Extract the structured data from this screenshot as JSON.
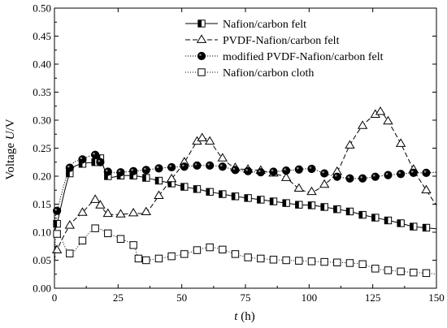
{
  "chart_data": {
    "type": "line",
    "xlabel": "t (h)",
    "xlabel_italic": "t",
    "xlabel_unit": " (h)",
    "ylabel": "Voltage U/V",
    "ylabel_prefix": "Voltage ",
    "ylabel_italic": "U",
    "ylabel_suffix": "/V",
    "xlim": [
      0,
      150
    ],
    "ylim": [
      0,
      0.5
    ],
    "xticks": [
      0,
      25,
      50,
      75,
      100,
      125,
      150
    ],
    "yticks": [
      0.0,
      0.05,
      0.1,
      0.15,
      0.2,
      0.25,
      0.3,
      0.35,
      0.4,
      0.45,
      0.5
    ],
    "xtick_labels": [
      "0",
      "25",
      "50",
      "75",
      "100",
      "125",
      "150"
    ],
    "ytick_labels": [
      "0.00",
      "0.05",
      "0.10",
      "0.15",
      "0.20",
      "0.25",
      "0.30",
      "0.35",
      "0.40",
      "0.45",
      "0.50"
    ],
    "grid": false,
    "legend_position": "top-right",
    "series": [
      {
        "name": "Nafion/carbon felt",
        "marker": "half-square",
        "dash": "solid",
        "color": "#000000",
        "x": [
          0,
          1,
          6,
          11,
          16,
          18,
          21,
          26,
          31,
          36,
          41,
          46,
          51,
          56,
          61,
          66,
          71,
          76,
          81,
          86,
          91,
          96,
          101,
          106,
          111,
          116,
          121,
          126,
          131,
          136,
          141,
          146,
          150
        ],
        "y": [
          0.105,
          0.115,
          0.205,
          0.222,
          0.225,
          0.232,
          0.2,
          0.201,
          0.201,
          0.197,
          0.192,
          0.187,
          0.181,
          0.177,
          0.172,
          0.168,
          0.164,
          0.161,
          0.158,
          0.155,
          0.152,
          0.149,
          0.148,
          0.145,
          0.141,
          0.137,
          0.131,
          0.126,
          0.121,
          0.116,
          0.11,
          0.108,
          0.106
        ]
      },
      {
        "name": "PVDF-Nafion/carbon felt",
        "marker": "open-triangle",
        "dash": "dashed",
        "color": "#000000",
        "x": [
          0,
          1,
          6,
          11,
          16,
          18,
          21,
          26,
          31,
          36,
          41,
          46,
          51,
          56,
          58,
          61,
          66,
          71,
          76,
          81,
          86,
          91,
          96,
          101,
          106,
          111,
          116,
          121,
          126,
          128,
          131,
          136,
          141,
          146,
          150
        ],
        "y": [
          0.05,
          0.068,
          0.112,
          0.135,
          0.158,
          0.148,
          0.133,
          0.132,
          0.134,
          0.136,
          0.165,
          0.195,
          0.225,
          0.262,
          0.268,
          0.262,
          0.232,
          0.215,
          0.212,
          0.21,
          0.205,
          0.197,
          0.178,
          0.172,
          0.185,
          0.208,
          0.255,
          0.29,
          0.31,
          0.315,
          0.298,
          0.258,
          0.212,
          0.175,
          0.148
        ]
      },
      {
        "name": "modified PVDF-Nafion/carbon felt",
        "marker": "filled-circle",
        "dash": "dotted",
        "color": "#000000",
        "x": [
          0,
          1,
          6,
          11,
          16,
          18,
          21,
          26,
          31,
          36,
          41,
          46,
          51,
          56,
          61,
          66,
          71,
          76,
          81,
          86,
          91,
          96,
          101,
          106,
          111,
          116,
          121,
          126,
          131,
          136,
          141,
          146,
          150
        ],
        "y": [
          0.125,
          0.138,
          0.215,
          0.23,
          0.238,
          0.225,
          0.208,
          0.207,
          0.209,
          0.211,
          0.214,
          0.216,
          0.217,
          0.219,
          0.219,
          0.217,
          0.211,
          0.209,
          0.207,
          0.208,
          0.21,
          0.212,
          0.213,
          0.205,
          0.199,
          0.196,
          0.196,
          0.199,
          0.202,
          0.204,
          0.206,
          0.206,
          0.207
        ]
      },
      {
        "name": "Nafion/carbon cloth",
        "marker": "open-square",
        "dash": "dotted-fine",
        "color": "#000000",
        "x": [
          0,
          1,
          6,
          11,
          16,
          21,
          26,
          31,
          33,
          36,
          41,
          46,
          51,
          56,
          61,
          66,
          71,
          76,
          81,
          86,
          91,
          96,
          101,
          106,
          111,
          116,
          121,
          126,
          131,
          136,
          141,
          146,
          150
        ],
        "y": [
          0.025,
          0.097,
          0.062,
          0.085,
          0.107,
          0.098,
          0.088,
          0.077,
          0.053,
          0.05,
          0.053,
          0.057,
          0.061,
          0.068,
          0.073,
          0.069,
          0.061,
          0.055,
          0.053,
          0.051,
          0.05,
          0.049,
          0.048,
          0.047,
          0.046,
          0.045,
          0.043,
          0.035,
          0.032,
          0.03,
          0.028,
          0.027,
          0.025
        ]
      }
    ]
  }
}
